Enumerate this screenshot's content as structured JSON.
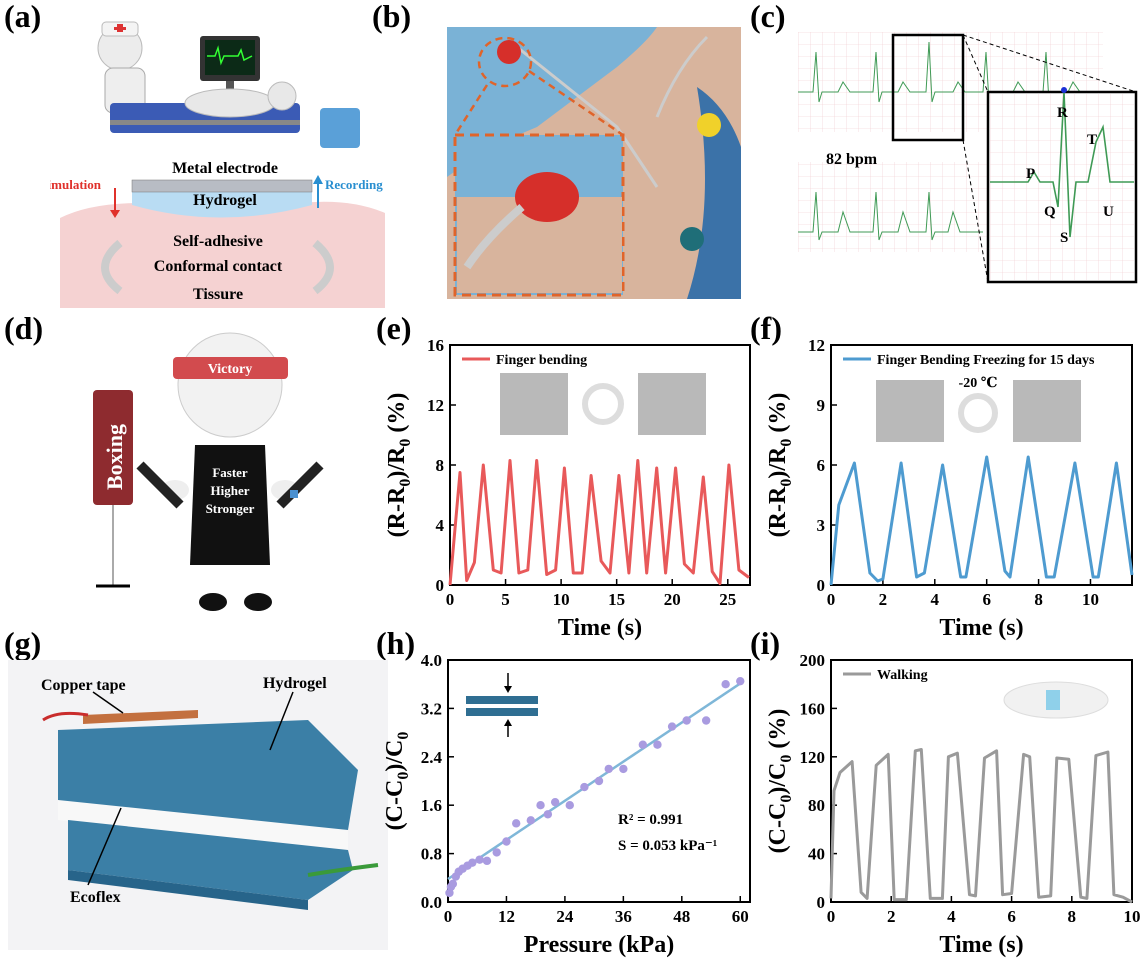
{
  "panel_labels": [
    "(a)",
    "(b)",
    "(c)",
    "(d)",
    "(e)",
    "(f)",
    "(g)",
    "(h)",
    "(i)"
  ],
  "panel_a": {
    "metal_electrode": "Metal electrode",
    "hydrogel": "Hydrogel",
    "stimulation": "Stimulation",
    "recording": "Recording",
    "self_adhesive": "Self-adhesive",
    "conformal_contact": "Conformal contact",
    "tissue": "Tissure",
    "colors": {
      "stimulation": "#e0312b",
      "recording": "#2a8fd0",
      "tissue": "#f5d2d2",
      "hydrogel": "#b9dcf3"
    }
  },
  "panel_c": {
    "bpm": "82 bpm",
    "waves": [
      "P",
      "Q",
      "R",
      "S",
      "T",
      "U"
    ]
  },
  "panel_d": {
    "victory": "Victory",
    "boxing": "Boxing",
    "motto": [
      "Faster",
      "Higher",
      "Stronger"
    ]
  },
  "panel_g": {
    "copper_tape": "Copper tape",
    "hydrogel": "Hydrogel",
    "ecoflex": "Ecoflex"
  },
  "chart_data": [
    {
      "id": "e",
      "type": "line",
      "xlabel": "Time (s)",
      "ylabel": "(R-R0)/R0 (%)",
      "xlim": [
        0,
        27
      ],
      "ylim": [
        0,
        16
      ],
      "xticks": [
        0,
        5,
        10,
        15,
        20,
        25
      ],
      "yticks": [
        0,
        4,
        8,
        12,
        16
      ],
      "legend": "Finger bending",
      "color": "#e8595a",
      "series": [
        {
          "name": "Finger bending",
          "x": [
            0,
            0.9,
            1.5,
            2.2,
            3.0,
            3.9,
            4.6,
            5.4,
            6.2,
            7.0,
            7.8,
            8.7,
            9.5,
            10.3,
            11.1,
            11.9,
            12.7,
            13.6,
            14.4,
            15.2,
            16.1,
            16.9,
            17.7,
            18.6,
            19.4,
            20.3,
            21.1,
            21.9,
            22.8,
            23.6,
            24.3,
            25.1,
            26.0,
            26.9
          ],
          "y": [
            0,
            7.5,
            0.3,
            1.5,
            8.0,
            1.0,
            0.8,
            8.3,
            0.8,
            1.0,
            8.3,
            0.7,
            1.0,
            7.8,
            0.8,
            0.8,
            7.3,
            1.6,
            0.8,
            7.3,
            0.8,
            8.3,
            0.8,
            7.8,
            0.8,
            7.8,
            1.4,
            0.8,
            7.2,
            0.9,
            0.1,
            8.0,
            1.0,
            0.5
          ]
        }
      ]
    },
    {
      "id": "f",
      "type": "line",
      "xlabel": "Time (s)",
      "ylabel": "(R-R0)/R0 (%)",
      "xlim": [
        0,
        11.6
      ],
      "ylim": [
        0,
        12
      ],
      "xticks": [
        0,
        2,
        4,
        6,
        8,
        10
      ],
      "yticks": [
        0,
        3,
        6,
        9,
        12
      ],
      "legend": "Finger Bending  Freezing for 15 days",
      "annotation": "-20 ℃",
      "color": "#4e9bd0",
      "series": [
        {
          "name": "Finger Bending  Freezing for 15 days",
          "x": [
            0,
            0.3,
            0.9,
            1.5,
            1.8,
            2.0,
            2.7,
            3.3,
            3.6,
            4.3,
            5.0,
            5.2,
            6.0,
            6.7,
            6.9,
            7.6,
            8.3,
            8.6,
            9.4,
            10.1,
            10.3,
            11.0,
            11.6
          ],
          "y": [
            0,
            4.0,
            6.1,
            0.6,
            0.2,
            0.3,
            6.1,
            0.4,
            0.6,
            6.0,
            0.4,
            0.4,
            6.4,
            0.7,
            0.4,
            6.4,
            0.4,
            0.4,
            6.1,
            0.4,
            0.4,
            6.1,
            0.5
          ]
        }
      ]
    },
    {
      "id": "h",
      "type": "scatter",
      "xlabel": "Pressure (kPa)",
      "ylabel": "(C-C0)/C0",
      "xlim": [
        0,
        62
      ],
      "ylim": [
        0,
        4.0
      ],
      "xticks": [
        0,
        12,
        24,
        36,
        48,
        60
      ],
      "yticks": [
        0.0,
        0.8,
        1.6,
        2.4,
        3.2,
        4.0
      ],
      "r_squared": "R² = 0.991",
      "sensitivity": "S = 0.053 kPa⁻¹",
      "colors": {
        "points": "#a99be0",
        "fit": "#7fb7d8"
      },
      "fit": {
        "x": [
          0,
          60.5
        ],
        "y": [
          0.38,
          3.64
        ]
      },
      "points": {
        "x": [
          0.3,
          0.6,
          1.0,
          1.6,
          2.2,
          3.0,
          4.0,
          5.0,
          6.5,
          8.0,
          10.0,
          12.0,
          14.0,
          17.0,
          19.0,
          20.5,
          22.0,
          25.0,
          28.0,
          31.0,
          33.0,
          36.0,
          40.0,
          43.0,
          46.0,
          49.0,
          53.0,
          57.0,
          60.0
        ],
        "y": [
          0.15,
          0.25,
          0.3,
          0.42,
          0.5,
          0.55,
          0.6,
          0.65,
          0.7,
          0.68,
          0.82,
          1.0,
          1.3,
          1.35,
          1.6,
          1.45,
          1.65,
          1.6,
          1.9,
          2.0,
          2.2,
          2.2,
          2.6,
          2.6,
          2.9,
          3.0,
          3.0,
          3.6,
          3.65
        ]
      }
    },
    {
      "id": "i",
      "type": "line",
      "xlabel": "Time (s)",
      "ylabel": "(C-C0)/C0 (%)",
      "xlim": [
        0,
        10
      ],
      "ylim": [
        0,
        200
      ],
      "xticks": [
        0,
        2,
        4,
        6,
        8,
        10
      ],
      "yticks": [
        0,
        40,
        80,
        120,
        160,
        200
      ],
      "legend": "Walking",
      "color": "#9a9a9a",
      "series": [
        {
          "name": "Walking",
          "x": [
            0,
            0.1,
            0.3,
            0.7,
            1.0,
            1.2,
            1.5,
            1.9,
            2.1,
            2.5,
            2.8,
            3.0,
            3.3,
            3.7,
            3.9,
            4.2,
            4.6,
            4.8,
            5.1,
            5.5,
            5.7,
            6.0,
            6.4,
            6.6,
            6.9,
            7.3,
            7.5,
            7.9,
            8.3,
            8.5,
            8.8,
            9.2,
            9.4,
            9.7,
            10.0
          ],
          "y": [
            3,
            92,
            107,
            116,
            8,
            3,
            113,
            122,
            2,
            2,
            125,
            126,
            3,
            3,
            120,
            123,
            6,
            5,
            119,
            125,
            6,
            7,
            122,
            120,
            4,
            5,
            119,
            118,
            4,
            3,
            121,
            124,
            6,
            4,
            0
          ]
        }
      ]
    }
  ]
}
